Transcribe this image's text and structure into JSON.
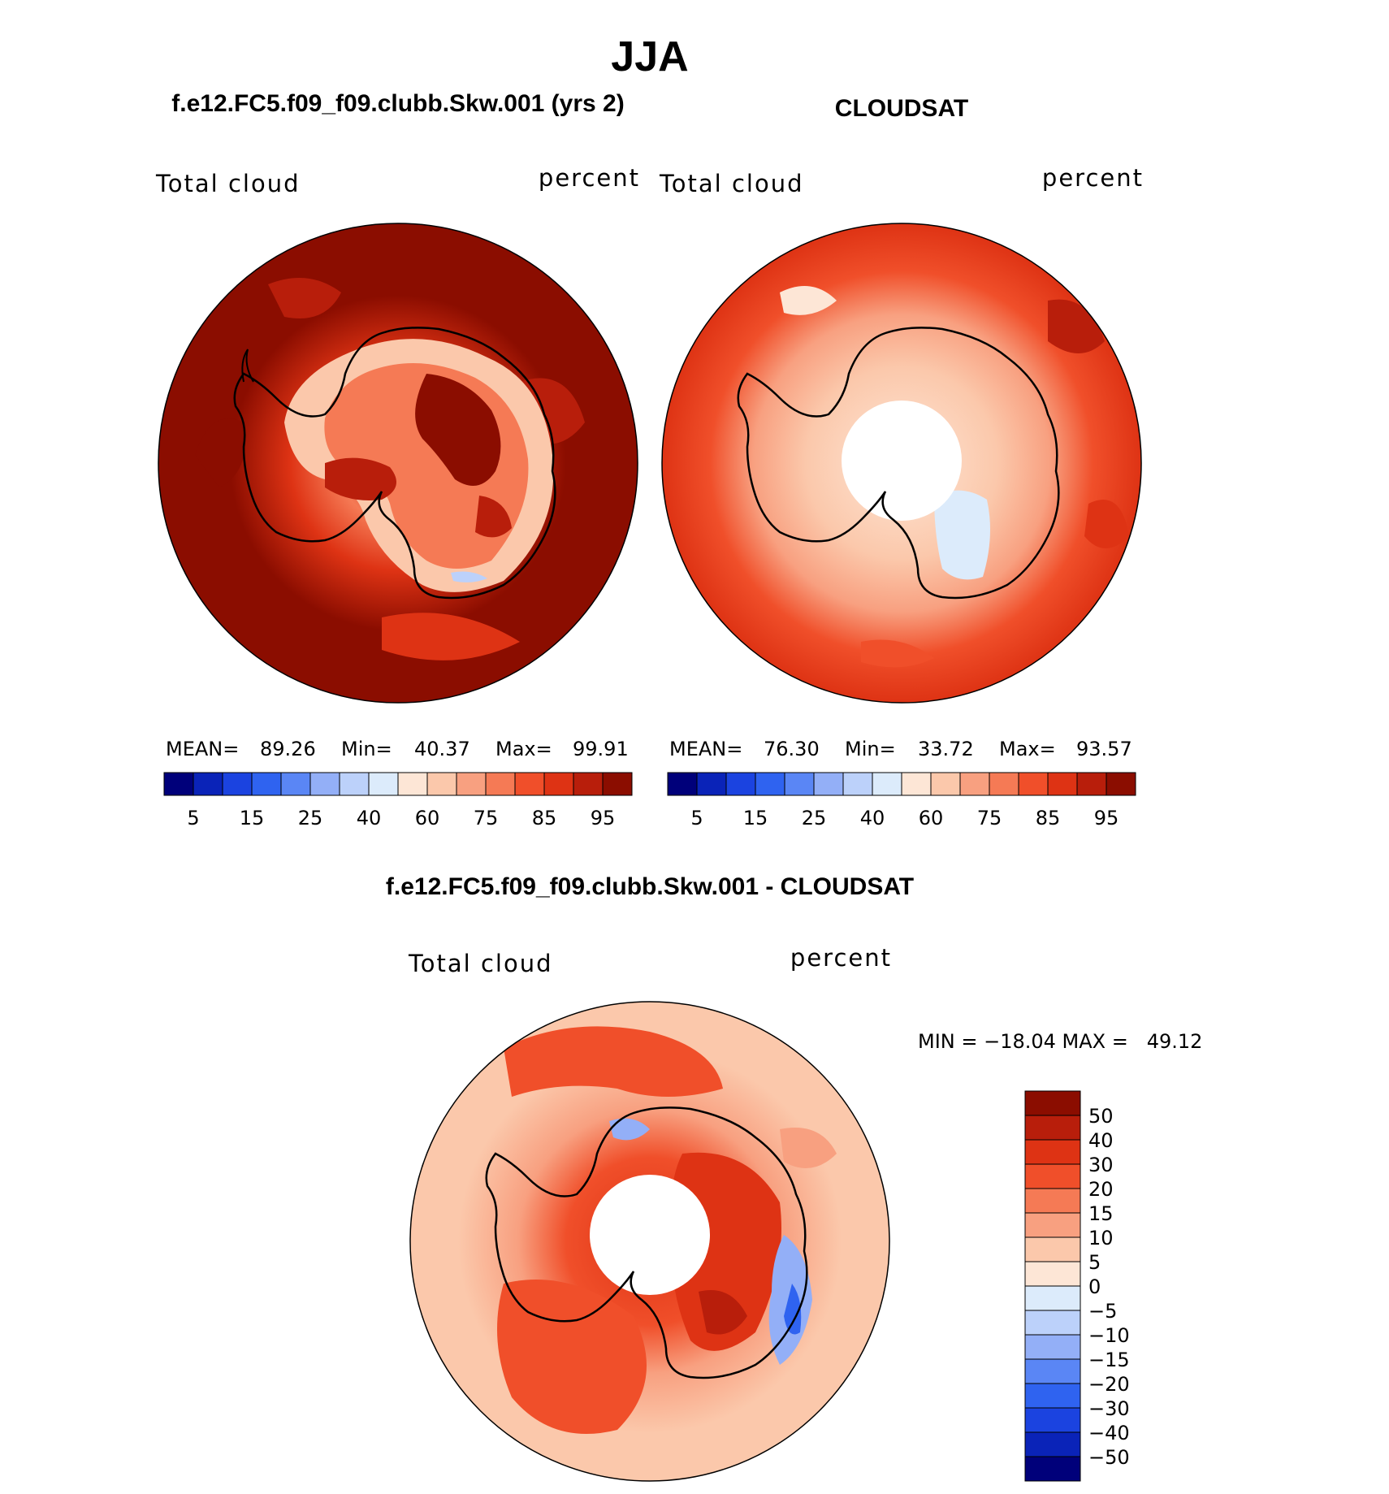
{
  "page_title": "JJA",
  "colors": {
    "ink": "#000000",
    "seq_scale": [
      "#00007a",
      "#0a23b8",
      "#1b43e0",
      "#2f63f0",
      "#5a86f5",
      "#93aff7",
      "#bcd1fa",
      "#dcebfb",
      "#fde6d6",
      "#fbc8ab",
      "#f8a080",
      "#f57a55",
      "#f04f2a",
      "#de3314",
      "#b81e0b",
      "#8b0d00"
    ],
    "diff_scale": [
      "#00007a",
      "#0a23b8",
      "#1b43e0",
      "#2f63f0",
      "#5a86f5",
      "#93aff7",
      "#bcd1fa",
      "#dcebfb",
      "#fde6d6",
      "#fbc8ab",
      "#f8a080",
      "#f57a55",
      "#f04f2a",
      "#de3314",
      "#b81e0b",
      "#8b0d00"
    ]
  },
  "panels": {
    "model": {
      "title": "f.e12.FC5.f09_f09.clubb.Skw.001 (yrs 2)",
      "variable": "Total cloud",
      "units": "percent",
      "mean_label": "MEAN=",
      "mean_value": "89.26",
      "min_label": "Min=",
      "min_value": "40.37",
      "max_label": "Max=",
      "max_value": "99.91"
    },
    "obs": {
      "title": "CLOUDSAT",
      "variable": "Total cloud",
      "units": "percent",
      "mean_label": "MEAN=",
      "mean_value": "76.30",
      "min_label": "Min=",
      "min_value": "33.72",
      "max_label": "Max=",
      "max_value": "93.57"
    },
    "diff": {
      "title": "f.e12.FC5.f09_f09.clubb.Skw.001 - CLOUDSAT",
      "variable": "Total cloud",
      "units": "percent",
      "minmax_text": "MIN = −18.04 MAX =   49.12"
    }
  },
  "colorbar_labels": [
    "5",
    "15",
    "25",
    "40",
    "60",
    "75",
    "85",
    "95"
  ],
  "diff_colorbar_labels": [
    "50",
    "40",
    "30",
    "20",
    "15",
    "10",
    "5",
    "0",
    "−5",
    "−10",
    "−15",
    "−20",
    "−30",
    "−40",
    "−50"
  ]
}
